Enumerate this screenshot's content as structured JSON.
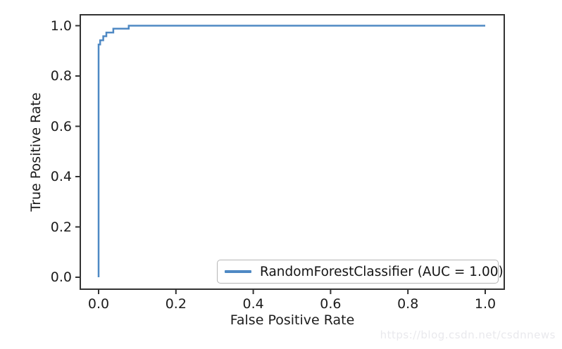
{
  "watermark": "https://blog.csdn.net/csdnnews",
  "colors": {
    "curve": "#4f89c4",
    "spine": "#333333",
    "tick": "#333333",
    "text": "#1c1c1c",
    "legend_border": "#b6b6b6",
    "watermark": "#e9e9ed",
    "background": "#ffffff"
  },
  "chart_data": {
    "type": "line",
    "title": "",
    "xlabel": "False Positive Rate",
    "ylabel": "True Positive Rate",
    "xlim": [
      -0.05,
      1.05
    ],
    "ylim": [
      -0.05,
      1.05
    ],
    "grid": false,
    "xticks": {
      "values": [
        0.0,
        0.2,
        0.4,
        0.6,
        0.8,
        1.0
      ],
      "labels": [
        "0.0",
        "0.2",
        "0.4",
        "0.6",
        "0.8",
        "1.0"
      ]
    },
    "yticks": {
      "values": [
        0.0,
        0.2,
        0.4,
        0.6,
        0.8,
        1.0
      ],
      "labels": [
        "0.0",
        "0.2",
        "0.4",
        "0.6",
        "0.8",
        "1.0"
      ]
    },
    "legend": {
      "position": "lower right",
      "entries": [
        {
          "label": "RandomForestClassifier (AUC = 1.00)",
          "color": "#4f89c4"
        }
      ]
    },
    "series": [
      {
        "name": "RandomForestClassifier (AUC = 1.00)",
        "color": "#4f89c4",
        "points": [
          [
            0.0,
            0.0
          ],
          [
            0.0,
            0.925
          ],
          [
            0.004,
            0.925
          ],
          [
            0.004,
            0.942
          ],
          [
            0.012,
            0.942
          ],
          [
            0.012,
            0.958
          ],
          [
            0.02,
            0.958
          ],
          [
            0.02,
            0.973
          ],
          [
            0.038,
            0.973
          ],
          [
            0.038,
            0.988
          ],
          [
            0.078,
            0.988
          ],
          [
            0.078,
            1.0
          ],
          [
            1.0,
            1.0
          ]
        ]
      }
    ]
  }
}
